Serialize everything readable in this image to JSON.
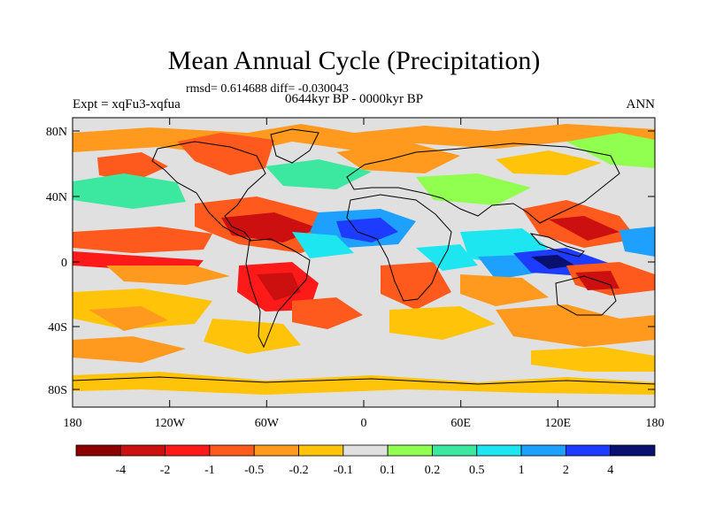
{
  "title": "Mean Annual Cycle (Precipitation)",
  "stats": "rmsd= 0.614688 diff= -0.030043",
  "period": "0644kyr BP - 0000kyr BP",
  "experiment": "Expt = xqFu3-xqfua",
  "season": "ANN",
  "lat_ticks": [
    "80N",
    "40N",
    "0",
    "40S",
    "80S"
  ],
  "lon_ticks": [
    "180",
    "120W",
    "60W",
    "0",
    "60E",
    "120E",
    "180"
  ],
  "legend": {
    "colors": [
      "#8b0000",
      "#cc1010",
      "#ff1a1a",
      "#ff5a1e",
      "#ff9a1e",
      "#ffc40a",
      "#e0e0e0",
      "#90ff50",
      "#3ce8a0",
      "#1ee6f0",
      "#1ea0ff",
      "#1e3cff",
      "#0a1070"
    ],
    "labels": [
      "-4",
      "-2",
      "-1",
      "-0.5",
      "-0.2",
      "-0.1",
      "0.1",
      "0.2",
      "0.5",
      "1",
      "2",
      "4"
    ]
  }
}
